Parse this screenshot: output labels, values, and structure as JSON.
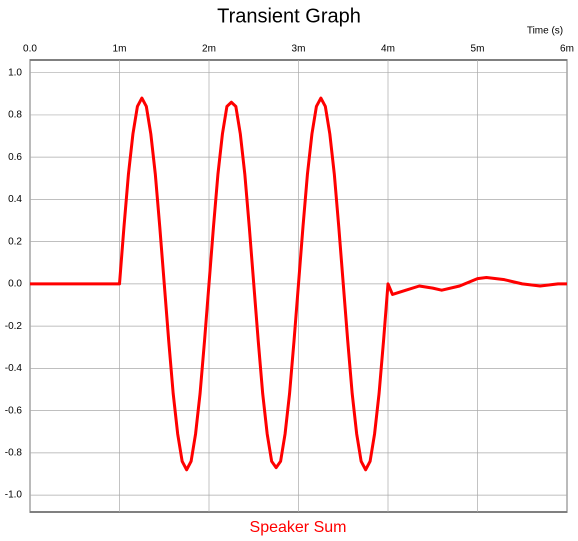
{
  "chart_data": {
    "type": "line",
    "title": "Transient Graph",
    "x_label": "Time  (s)",
    "x": [
      0,
      0.001,
      0.00105,
      0.0011,
      0.00115,
      0.0012,
      0.00125,
      0.0013,
      0.00135,
      0.0014,
      0.00145,
      0.0015,
      0.00155,
      0.0016,
      0.00165,
      0.0017,
      0.00175,
      0.0018,
      0.00185,
      0.0019,
      0.00195,
      0.002,
      0.00205,
      0.0021,
      0.00215,
      0.0022,
      0.00225,
      0.0023,
      0.00235,
      0.0024,
      0.00245,
      0.0025,
      0.00255,
      0.0026,
      0.00265,
      0.0027,
      0.00275,
      0.0028,
      0.00285,
      0.0029,
      0.00295,
      0.003,
      0.00305,
      0.0031,
      0.00315,
      0.0032,
      0.00325,
      0.0033,
      0.00335,
      0.0034,
      0.00345,
      0.0035,
      0.00355,
      0.0036,
      0.00365,
      0.0037,
      0.00375,
      0.0038,
      0.00385,
      0.0039,
      0.00395,
      0.004,
      0.00405,
      0.0042,
      0.00435,
      0.0045,
      0.0046,
      0.0048,
      0.005,
      0.0051,
      0.0053,
      0.0055,
      0.0057,
      0.0059,
      0.006
    ],
    "series": [
      {
        "name": "Speaker Sum",
        "color": "#ff0000",
        "values": [
          0,
          0,
          0.27,
          0.52,
          0.71,
          0.84,
          0.88,
          0.84,
          0.71,
          0.52,
          0.27,
          0,
          -0.27,
          -0.52,
          -0.71,
          -0.84,
          -0.88,
          -0.84,
          -0.71,
          -0.52,
          -0.27,
          0,
          0.27,
          0.52,
          0.71,
          0.84,
          0.86,
          0.84,
          0.71,
          0.52,
          0.27,
          0,
          -0.27,
          -0.52,
          -0.71,
          -0.84,
          -0.87,
          -0.84,
          -0.71,
          -0.52,
          -0.27,
          0,
          0.27,
          0.52,
          0.71,
          0.84,
          0.88,
          0.84,
          0.71,
          0.52,
          0.27,
          0,
          -0.27,
          -0.52,
          -0.71,
          -0.84,
          -0.88,
          -0.84,
          -0.71,
          -0.52,
          -0.27,
          0,
          -0.05,
          -0.03,
          -0.01,
          -0.02,
          -0.03,
          -0.01,
          0.025,
          0.03,
          0.02,
          0,
          -0.01,
          0,
          0
        ]
      }
    ],
    "xlim": [
      0,
      0.006
    ],
    "xticks": [
      {
        "value": 0,
        "label": "0.0"
      },
      {
        "value": 0.001,
        "label": "1m"
      },
      {
        "value": 0.002,
        "label": "2m"
      },
      {
        "value": 0.003,
        "label": "3m"
      },
      {
        "value": 0.004,
        "label": "4m"
      },
      {
        "value": 0.005,
        "label": "5m"
      },
      {
        "value": 0.006,
        "label": "6m"
      }
    ],
    "ylim": [
      -1.08,
      1.06
    ],
    "yticks": [
      {
        "value": 1,
        "label": "1.0"
      },
      0.8,
      0.6,
      0.4,
      0.2,
      {
        "value": 0,
        "label": "0.0"
      },
      -0.2,
      -0.4,
      -0.6,
      -0.8,
      {
        "value": -1,
        "label": "-1.0"
      }
    ],
    "grid": true
  }
}
